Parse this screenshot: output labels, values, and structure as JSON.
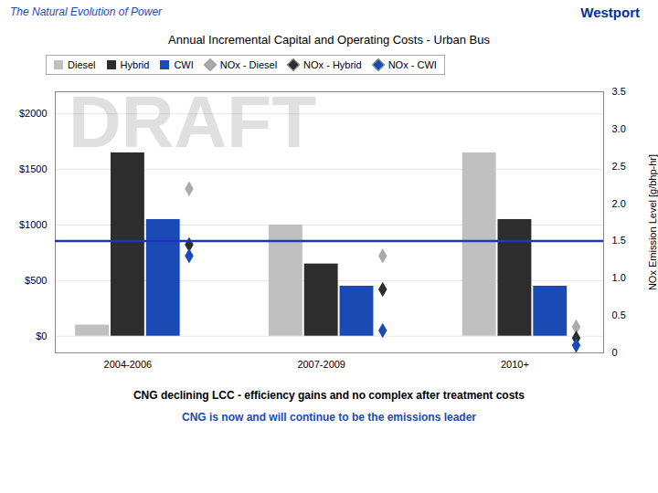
{
  "chart_data": {
    "type": "bar",
    "title": "Annual Incremental Capital and Operating Costs - Urban Bus",
    "categories": [
      "2004-2006",
      "2007-2009",
      "2010+"
    ],
    "series": [
      {
        "name": "Diesel",
        "color": "#c0c0c0",
        "values": [
          100,
          1000,
          1650
        ]
      },
      {
        "name": "Hybrid",
        "color": "#2d2d2d",
        "values": [
          1650,
          650,
          1050
        ]
      },
      {
        "name": "CWI",
        "color": "#1a4bb5",
        "values": [
          1050,
          450,
          450
        ]
      },
      {
        "name": "NOx - Diesel",
        "type": "scatter",
        "marker": "diamond",
        "axis": "y2",
        "color": "#aaaaaa",
        "values": [
          2.2,
          1.3,
          0.35
        ]
      },
      {
        "name": "NOx - Hybrid",
        "type": "scatter",
        "marker": "diamond",
        "axis": "y2",
        "color": "#2d2d2d",
        "values": [
          1.45,
          0.85,
          0.2
        ]
      },
      {
        "name": "NOx - CWI",
        "type": "scatter",
        "marker": "diamond",
        "axis": "y2",
        "color": "#1a4bb5",
        "values": [
          1.3,
          0.3,
          0.1
        ]
      }
    ],
    "ylim": [
      -150,
      2200
    ],
    "yticks": [
      {
        "value": 0,
        "label": "$0"
      },
      {
        "value": 500,
        "label": "$500"
      },
      {
        "value": 1000,
        "label": "$1000"
      },
      {
        "value": 1500,
        "label": "$1500"
      },
      {
        "value": 2000,
        "label": "$2000"
      }
    ],
    "y2lim": [
      0,
      3.5
    ],
    "y2ticks": [
      0,
      0.5,
      {
        "value": 1.0,
        "label": "1.0"
      },
      1.5,
      {
        "value": 2.0,
        "label": "2.0"
      },
      2.5,
      {
        "value": 3.0,
        "label": "3.0"
      },
      3.5
    ],
    "y2label": "NOx Emission Level [g/bhp-hr]",
    "grid": true,
    "legend": "top",
    "reference_lines": [
      {
        "axis": "y2",
        "value": 1.5,
        "color": "#2233bb"
      }
    ],
    "header": {
      "text": "The Natural Evolution of Power",
      "color": "#1a4bb5"
    },
    "logo": {
      "text": "Westport",
      "color": "#003399"
    },
    "watermark": {
      "text": "DRAFT",
      "color": "#cccccc"
    },
    "notes": [
      {
        "text": "CNG declining LCC - efficiency gains and no complex after treatment costs",
        "color": "black"
      },
      {
        "text": "CNG is now and will continue to be the emissions leader",
        "color": "#1a4bb5"
      }
    ]
  }
}
